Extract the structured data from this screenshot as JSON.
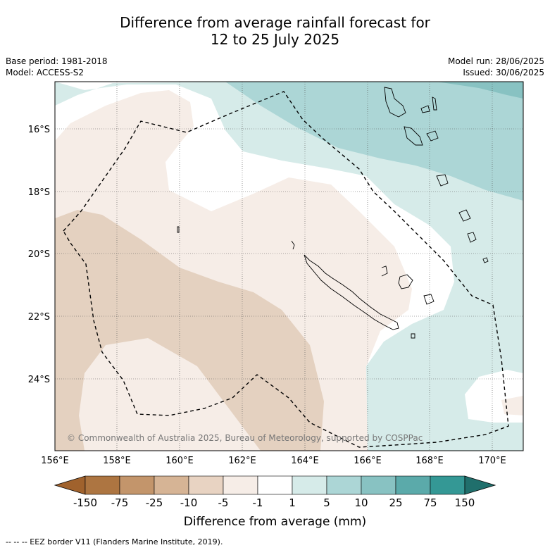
{
  "header": {
    "title_line1": "Difference from average rainfall forecast for",
    "title_line2": "12 to 25 July 2025",
    "base_period": "Base period: 1981-2018",
    "model": "Model: ACCESS-S2",
    "model_run": "Model run: 28/06/2025",
    "issued": "Issued: 30/06/2025"
  },
  "map": {
    "lon_ticks": [
      "156°E",
      "158°E",
      "160°E",
      "162°E",
      "164°E",
      "166°E",
      "168°E",
      "170°E"
    ],
    "lat_ticks": [
      "16°S",
      "18°S",
      "20°S",
      "22°S",
      "24°S"
    ],
    "lon_range": [
      156,
      171
    ],
    "lat_range": [
      -26.3,
      -14.7
    ],
    "copyright": "© Commonwealth of Australia 2025, Bureau of Meteorology, supported by COSPPac"
  },
  "colorbar": {
    "labels": [
      "-150",
      "-75",
      "-25",
      "-10",
      "-5",
      "-1",
      "1",
      "5",
      "10",
      "25",
      "75",
      "150"
    ],
    "colors": [
      "#a0622d",
      "#ad7541",
      "#c3956b",
      "#d6b495",
      "#e8d3c2",
      "#f6ede7",
      "#ffffff",
      "#d6ebe9",
      "#acd6d6",
      "#88c2c2",
      "#5baaaa",
      "#349895",
      "#206f6c"
    ],
    "title": "Difference from average (mm)"
  },
  "footer": {
    "legend_text": "--  --  -- EEZ border V11 (Flanders Marine Institute, 2019)."
  }
}
